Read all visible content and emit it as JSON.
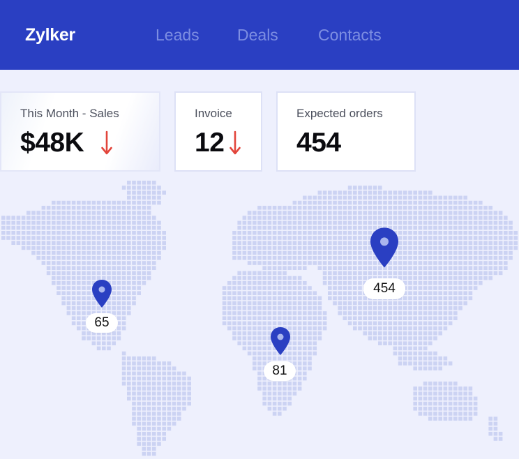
{
  "header": {
    "brand": "Zylker",
    "nav": [
      "Leads",
      "Deals",
      "Contacts"
    ]
  },
  "stats": [
    {
      "label": "This Month - Sales",
      "value": "$48K",
      "trend": "down"
    },
    {
      "label": "Invoice",
      "value": "12",
      "trend": "down"
    },
    {
      "label": "Expected orders",
      "value": "454",
      "trend": "none"
    }
  ],
  "map": {
    "markers": [
      {
        "region": "North America",
        "count": "65"
      },
      {
        "region": "Africa",
        "count": "81"
      },
      {
        "region": "Asia",
        "count": "454"
      }
    ]
  },
  "colors": {
    "header_bg": "#2a3fc2",
    "nav_text": "#7d8ee2",
    "page_bg": "#eef0fd",
    "trend_down": "#e2453b",
    "pin": "#2a3fc2",
    "map_dot": "#ccd3f3"
  }
}
